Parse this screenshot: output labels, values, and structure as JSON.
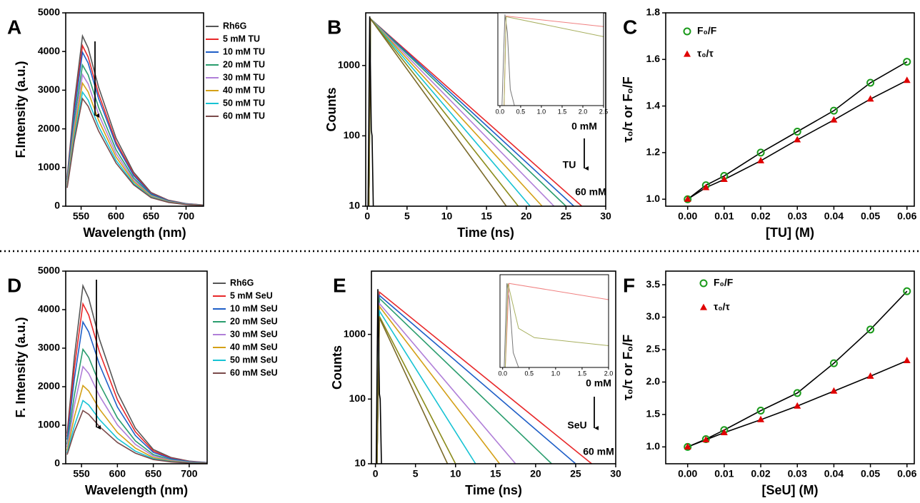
{
  "chart_data": [
    {
      "type": "line",
      "panel_label": "A",
      "xlabel": "Wavelength (nm)",
      "ylabel": "F.Intensity (a.u.)",
      "xlim": [
        528,
        725
      ],
      "ylim": [
        0,
        5000
      ],
      "xticks": [
        550,
        600,
        650,
        700
      ],
      "yticks": [
        0,
        1000,
        2000,
        3000,
        4000,
        5000
      ],
      "legend": "upper right",
      "arrow": "down",
      "x": [
        530,
        540,
        552,
        560,
        575,
        600,
        625,
        650,
        675,
        700,
        725
      ],
      "series": [
        {
          "name": "Rh6G",
          "color": "#555555",
          "values": [
            748,
            2640,
            4400,
            4092,
            3080,
            1760,
            880,
            352,
            154,
            66,
            31
          ]
        },
        {
          "name": "5 mM TU",
          "color": "#e8282a",
          "values": [
            706,
            2490,
            4150,
            3860,
            2905,
            1660,
            830,
            332,
            145,
            62,
            29
          ]
        },
        {
          "name": "10 mM TU",
          "color": "#1f5fc7",
          "values": [
            677,
            2388,
            3980,
            3701,
            2786,
            1592,
            796,
            318,
            139,
            60,
            28
          ]
        },
        {
          "name": "20 mM TU",
          "color": "#2a9d6e",
          "values": [
            621,
            2190,
            3650,
            3395,
            2555,
            1460,
            730,
            292,
            128,
            55,
            26
          ]
        },
        {
          "name": "30 mM TU",
          "color": "#b07fd8",
          "values": [
            578,
            2040,
            3400,
            3162,
            2380,
            1360,
            680,
            272,
            119,
            51,
            24
          ]
        },
        {
          "name": "40 mM TU",
          "color": "#d4a017",
          "values": [
            541,
            1908,
            3180,
            2957,
            2226,
            1272,
            636,
            254,
            111,
            48,
            22
          ]
        },
        {
          "name": "50 mM TU",
          "color": "#17c3d4",
          "values": [
            502,
            1770,
            2950,
            2744,
            2065,
            1180,
            590,
            236,
            103,
            44,
            21
          ]
        },
        {
          "name": "60 mM TU",
          "color": "#7a4a4a",
          "values": [
            473,
            1668,
            2780,
            2585,
            1946,
            1112,
            556,
            222,
            97,
            42,
            19
          ]
        }
      ]
    },
    {
      "type": "line",
      "panel_label": "B",
      "xlabel": "Time (ns)",
      "ylabel": "Counts",
      "log_scale": "y",
      "xlim": [
        -0.2,
        30
      ],
      "ylim": [
        10,
        5600
      ],
      "xticks": [
        0,
        5,
        10,
        15,
        20,
        25,
        30
      ],
      "yticks": [
        10,
        100,
        1000
      ],
      "annotations": [
        "0 mM",
        "TU",
        "60 mM"
      ],
      "arrow": "down",
      "series": [
        {
          "color": "#e8282a",
          "x": [
            0.2,
            0.4,
            27
          ],
          "values": [
            10,
            4600,
            10
          ]
        },
        {
          "color": "#1f5fc7",
          "x": [
            0.2,
            0.4,
            26
          ],
          "values": [
            10,
            4600,
            10
          ]
        },
        {
          "color": "#2a9d6e",
          "x": [
            0.2,
            0.4,
            25
          ],
          "values": [
            10,
            4600,
            10
          ]
        },
        {
          "color": "#b07fd8",
          "x": [
            0.2,
            0.4,
            23.5
          ],
          "values": [
            10,
            4600,
            10
          ]
        },
        {
          "color": "#d4a017",
          "x": [
            0.2,
            0.4,
            22
          ],
          "values": [
            10,
            4600,
            10
          ]
        },
        {
          "color": "#17c3d4",
          "x": [
            0.2,
            0.4,
            20.5
          ],
          "values": [
            10,
            4600,
            10
          ]
        },
        {
          "color": "#8b8b1a",
          "x": [
            0.2,
            0.4,
            19
          ],
          "values": [
            10,
            4600,
            10
          ]
        },
        {
          "color": "#7a6a2a",
          "x": [
            0.2,
            0.4,
            17.5
          ],
          "values": [
            10,
            4600,
            10
          ]
        },
        {
          "color": "#000000",
          "x": [
            0.1,
            0.3,
            0.5,
            0.6,
            0.75
          ],
          "values": [
            10,
            5000,
            120,
            100,
            10
          ]
        }
      ],
      "inset": {
        "xlim": [
          -0.05,
          2.5
        ],
        "ylim": [
          10,
          5600
        ],
        "xticks": [
          {
            "value": 0,
            "label": "0.0"
          },
          {
            "value": 0.5,
            "label": "0.5"
          },
          {
            "value": 1,
            "label": "1.0"
          },
          {
            "value": 1.5,
            "label": "1.5"
          },
          {
            "value": 2,
            "label": "2.0"
          },
          {
            "value": 2.5,
            "label": "2.5"
          }
        ],
        "series": [
          {
            "color": "#777777",
            "x": [
              0.05,
              0.12,
              0.18,
              0.25,
              0.35
            ],
            "values": [
              10,
              5000,
              1500,
              30,
              10
            ]
          },
          {
            "color": "#f08080",
            "x": [
              0.1,
              0.15,
              2.5
            ],
            "values": [
              10,
              4500,
              2200
            ]
          },
          {
            "color": "#a8b060",
            "x": [
              0.1,
              0.15,
              2.5
            ],
            "values": [
              10,
              4300,
              1100
            ]
          }
        ]
      }
    },
    {
      "type": "scatter",
      "panel_label": "C",
      "xlabel": "[TU] (M)",
      "ylabel": "τ₀/τ or F₀/F",
      "legend": "upper left",
      "fit": true,
      "xlim": [
        -0.006,
        0.062
      ],
      "ylim": [
        0.97,
        1.8
      ],
      "xticks": [
        {
          "value": 0,
          "label": "0.00"
        },
        {
          "value": 0.01,
          "label": "0.01"
        },
        {
          "value": 0.02,
          "label": "0.02"
        },
        {
          "value": 0.03,
          "label": "0.03"
        },
        {
          "value": 0.04,
          "label": "0.04"
        },
        {
          "value": 0.05,
          "label": "0.05"
        },
        {
          "value": 0.06,
          "label": "0.06"
        }
      ],
      "yticks": [
        {
          "value": 1,
          "label": "1.0"
        },
        {
          "value": 1.2,
          "label": "1.2"
        },
        {
          "value": 1.4,
          "label": "1.4"
        },
        {
          "value": 1.6,
          "label": "1.6"
        },
        {
          "value": 1.8,
          "label": "1.8"
        }
      ],
      "x": [
        0,
        0.005,
        0.01,
        0.02,
        0.03,
        0.04,
        0.05,
        0.06
      ],
      "series": [
        {
          "name": "F₀/F",
          "color": "#1a9a1a",
          "marker": "circle",
          "values": [
            1.0,
            1.06,
            1.1,
            1.2,
            1.29,
            1.38,
            1.5,
            1.59
          ]
        },
        {
          "name": "τ₀/τ",
          "color": "#e00000",
          "marker": "triangle",
          "values": [
            1.0,
            1.05,
            1.085,
            1.165,
            1.255,
            1.34,
            1.43,
            1.51
          ]
        }
      ]
    },
    {
      "type": "line",
      "panel_label": "D",
      "xlabel": "Wavelength (nm)",
      "ylabel": "F. Intensity (a.u.)",
      "xlim": [
        528,
        725
      ],
      "ylim": [
        0,
        5000
      ],
      "xticks": [
        550,
        600,
        650,
        700
      ],
      "yticks": [
        0,
        1000,
        2000,
        3000,
        4000,
        5000
      ],
      "legend": "upper right",
      "arrow": "down",
      "x": [
        530,
        540,
        552,
        560,
        575,
        600,
        625,
        650,
        675,
        700,
        725
      ],
      "series": [
        {
          "name": "Rh6G",
          "color": "#555555",
          "values": [
            785,
            2772,
            4620,
            4297,
            3234,
            1848,
            924,
            370,
            162,
            69,
            32
          ]
        },
        {
          "name": "5 mM SeU",
          "color": "#e8282a",
          "values": [
            706,
            2490,
            4150,
            3860,
            2905,
            1660,
            830,
            332,
            145,
            62,
            29
          ]
        },
        {
          "name": "10 mM SeU",
          "color": "#1f5fc7",
          "values": [
            626,
            2208,
            3680,
            3422,
            2576,
            1472,
            736,
            294,
            129,
            55,
            26
          ]
        },
        {
          "name": "20 mM SeU",
          "color": "#2a9d6e",
          "values": [
            505,
            1782,
            2970,
            2762,
            2079,
            1188,
            594,
            238,
            104,
            45,
            21
          ]
        },
        {
          "name": "30 mM SeU",
          "color": "#b07fd8",
          "values": [
            428,
            1512,
            2520,
            2344,
            1764,
            1008,
            504,
            202,
            88,
            38,
            18
          ]
        },
        {
          "name": "40 mM SeU",
          "color": "#d4a017",
          "values": [
            345,
            1218,
            2030,
            1888,
            1421,
            812,
            406,
            162,
            71,
            30,
            14
          ]
        },
        {
          "name": "50 mM SeU",
          "color": "#17c3d4",
          "values": [
            279,
            984,
            1640,
            1525,
            1148,
            656,
            328,
            131,
            57,
            25,
            11
          ]
        },
        {
          "name": "60 mM SeU",
          "color": "#7a4a4a",
          "values": [
            235,
            828,
            1380,
            1283,
            966,
            552,
            276,
            110,
            48,
            21,
            10
          ]
        }
      ]
    },
    {
      "type": "line",
      "panel_label": "E",
      "xlabel": "Time (ns)",
      "ylabel": "Counts",
      "log_scale": "y",
      "xlim": [
        -0.5,
        30
      ],
      "ylim": [
        10,
        9500
      ],
      "xticks": [
        0,
        5,
        10,
        15,
        20,
        25,
        30
      ],
      "yticks": [
        10,
        100,
        1000
      ],
      "annotations": [
        "0 mM",
        "SeU",
        "60 mM"
      ],
      "arrow": "down",
      "series": [
        {
          "color": "#e8282a",
          "x": [
            0.2,
            0.5,
            27
          ],
          "values": [
            10,
            4500,
            10
          ]
        },
        {
          "color": "#1f5fc7",
          "x": [
            0.2,
            0.5,
            25
          ],
          "values": [
            10,
            4000,
            10
          ]
        },
        {
          "color": "#2a9d6e",
          "x": [
            0.2,
            0.5,
            22
          ],
          "values": [
            10,
            3600,
            10
          ]
        },
        {
          "color": "#b07fd8",
          "x": [
            0.2,
            0.5,
            17.5
          ],
          "values": [
            10,
            3000,
            10
          ]
        },
        {
          "color": "#d4a017",
          "x": [
            0.2,
            0.5,
            15.5
          ],
          "values": [
            10,
            2700,
            10
          ]
        },
        {
          "color": "#17c3d4",
          "x": [
            0.2,
            0.5,
            12.5
          ],
          "values": [
            10,
            2300,
            10
          ]
        },
        {
          "color": "#8b8b1a",
          "x": [
            0.2,
            0.5,
            10
          ],
          "values": [
            10,
            1900,
            10
          ]
        },
        {
          "color": "#7a6a2a",
          "x": [
            0.2,
            0.5,
            9
          ],
          "values": [
            10,
            1800,
            10
          ]
        },
        {
          "color": "#000000",
          "x": [
            0.1,
            0.3,
            0.5,
            0.6,
            0.75
          ],
          "values": [
            10,
            5000,
            120,
            100,
            10
          ]
        }
      ],
      "inset": {
        "xlim": [
          -0.05,
          2.0
        ],
        "ylim": [
          10,
          9500
        ],
        "xticks": [
          {
            "value": 0,
            "label": "0.0"
          },
          {
            "value": 0.5,
            "label": "0.5"
          },
          {
            "value": 1,
            "label": "1.0"
          },
          {
            "value": 1.5,
            "label": "1.5"
          },
          {
            "value": 2,
            "label": "2.0"
          }
        ],
        "series": [
          {
            "color": "#777777",
            "x": [
              0.03,
              0.08,
              0.13,
              0.2,
              0.3
            ],
            "values": [
              10,
              5000,
              1500,
              30,
              10
            ]
          },
          {
            "color": "#f08080",
            "x": [
              0.05,
              0.12,
              2.0
            ],
            "values": [
              10,
              5000,
              1500
            ]
          },
          {
            "color": "#a8b060",
            "x": [
              0.05,
              0.1,
              0.3,
              0.6,
              2.0
            ],
            "values": [
              10,
              5000,
              180,
              90,
              50
            ]
          }
        ]
      }
    },
    {
      "type": "scatter",
      "panel_label": "F",
      "xlabel": "[SeU] (M)",
      "ylabel": "τ₀/τ or F₀/F",
      "legend": "upper left",
      "fit": true,
      "xlim": [
        -0.006,
        0.062
      ],
      "ylim": [
        0.74,
        3.71
      ],
      "xticks": [
        {
          "value": 0,
          "label": "0.00"
        },
        {
          "value": 0.01,
          "label": "0.01"
        },
        {
          "value": 0.02,
          "label": "0.02"
        },
        {
          "value": 0.03,
          "label": "0.03"
        },
        {
          "value": 0.04,
          "label": "0.04"
        },
        {
          "value": 0.05,
          "label": "0.05"
        },
        {
          "value": 0.06,
          "label": "0.06"
        }
      ],
      "yticks": [
        {
          "value": 1,
          "label": "1.0"
        },
        {
          "value": 1.5,
          "label": "1.5"
        },
        {
          "value": 2,
          "label": "2.0"
        },
        {
          "value": 2.5,
          "label": "2.5"
        },
        {
          "value": 3,
          "label": "3.0"
        },
        {
          "value": 3.5,
          "label": "3.5"
        }
      ],
      "x": [
        0,
        0.005,
        0.01,
        0.02,
        0.03,
        0.04,
        0.05,
        0.06
      ],
      "series": [
        {
          "name": "F₀/F",
          "color": "#1a9a1a",
          "marker": "circle",
          "values": [
            1.0,
            1.12,
            1.26,
            1.56,
            1.83,
            2.29,
            2.81,
            3.4
          ]
        },
        {
          "name": "τ₀/τ",
          "color": "#e00000",
          "marker": "triangle",
          "values": [
            1.0,
            1.11,
            1.22,
            1.42,
            1.63,
            1.86,
            2.09,
            2.33
          ]
        }
      ]
    }
  ]
}
